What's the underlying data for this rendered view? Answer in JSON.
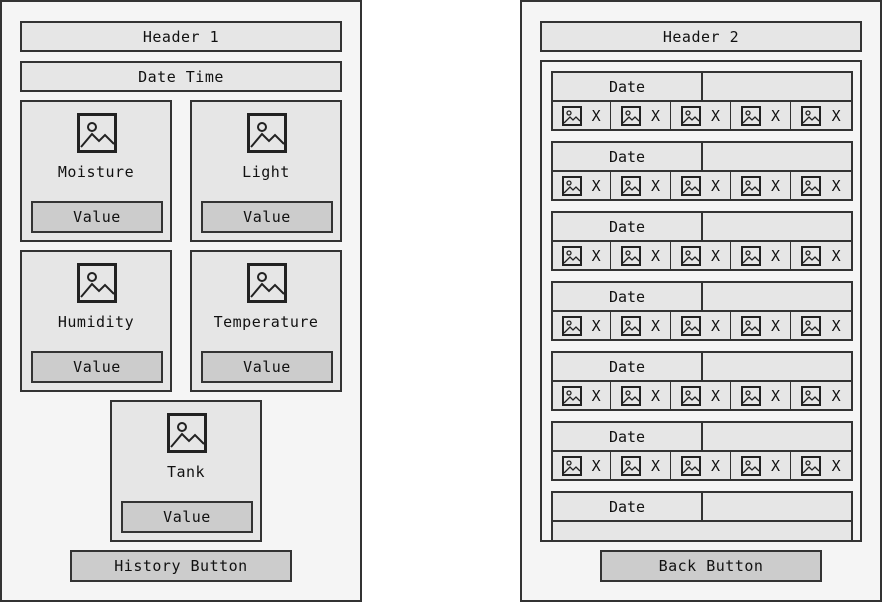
{
  "screen1": {
    "header": "Header 1",
    "datetime": "Date Time",
    "cards": [
      {
        "label": "Moisture",
        "value": "Value",
        "icon": "image-placeholder-icon"
      },
      {
        "label": "Light",
        "value": "Value",
        "icon": "image-placeholder-icon"
      },
      {
        "label": "Humidity",
        "value": "Value",
        "icon": "image-placeholder-icon"
      },
      {
        "label": "Temperature",
        "value": "Value",
        "icon": "image-placeholder-icon"
      },
      {
        "label": "Tank",
        "value": "Value",
        "icon": "image-placeholder-icon"
      }
    ],
    "history_button": "History Button"
  },
  "screen2": {
    "header": "Header 2",
    "entries": [
      {
        "date": "Date",
        "metrics": [
          "X",
          "X",
          "X",
          "X",
          "X"
        ]
      },
      {
        "date": "Date",
        "metrics": [
          "X",
          "X",
          "X",
          "X",
          "X"
        ]
      },
      {
        "date": "Date",
        "metrics": [
          "X",
          "X",
          "X",
          "X",
          "X"
        ]
      },
      {
        "date": "Date",
        "metrics": [
          "X",
          "X",
          "X",
          "X",
          "X"
        ]
      },
      {
        "date": "Date",
        "metrics": [
          "X",
          "X",
          "X",
          "X",
          "X"
        ]
      },
      {
        "date": "Date",
        "metrics": [
          "X",
          "X",
          "X",
          "X",
          "X"
        ]
      },
      {
        "date": "Date",
        "metrics": []
      }
    ],
    "back_button": "Back Button"
  },
  "colors": {
    "outline": "#333333",
    "panel": "#e6e6e6",
    "button": "#cccccc",
    "screen": "#f5f5f5"
  }
}
